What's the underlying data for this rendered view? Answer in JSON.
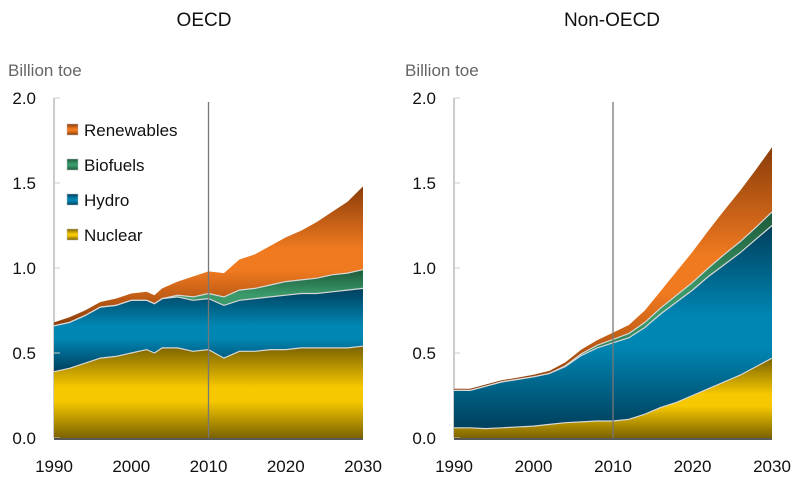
{
  "chart_data": [
    {
      "type": "area",
      "stacked": true,
      "title": "OECD",
      "ylabel": "Billion toe",
      "xlabel": "",
      "xlim": [
        1990,
        2030
      ],
      "ylim": [
        0,
        2.0
      ],
      "xticks": [
        "1990",
        "2000",
        "2010",
        "2020",
        "2030"
      ],
      "yticks": [
        "0.0",
        "0.5",
        "1.0",
        "1.5",
        "2.0"
      ],
      "divider_year": 2010,
      "grid": false,
      "legend": {
        "placement": "top-left",
        "entries": [
          "Renewables",
          "Biofuels",
          "Hydro",
          "Nuclear"
        ]
      },
      "x": [
        1990,
        1992,
        1994,
        1996,
        1998,
        2000,
        2002,
        2003,
        2004,
        2006,
        2008,
        2010,
        2012,
        2014,
        2016,
        2018,
        2020,
        2022,
        2024,
        2026,
        2028,
        2030
      ],
      "series": [
        {
          "name": "Nuclear",
          "values": [
            0.39,
            0.41,
            0.44,
            0.47,
            0.48,
            0.5,
            0.52,
            0.5,
            0.53,
            0.53,
            0.51,
            0.52,
            0.47,
            0.51,
            0.51,
            0.52,
            0.52,
            0.53,
            0.53,
            0.53,
            0.53,
            0.54
          ]
        },
        {
          "name": "Hydro",
          "values": [
            0.27,
            0.27,
            0.28,
            0.3,
            0.3,
            0.31,
            0.29,
            0.29,
            0.29,
            0.3,
            0.3,
            0.3,
            0.31,
            0.3,
            0.31,
            0.31,
            0.32,
            0.32,
            0.32,
            0.33,
            0.34,
            0.34
          ]
        },
        {
          "name": "Biofuels",
          "values": [
            0.0,
            0.0,
            0.0,
            0.0,
            0.0,
            0.0,
            0.0,
            0.0,
            0.0,
            0.01,
            0.02,
            0.03,
            0.05,
            0.06,
            0.06,
            0.07,
            0.08,
            0.08,
            0.09,
            0.1,
            0.1,
            0.11
          ]
        },
        {
          "name": "Renewables",
          "values": [
            0.02,
            0.03,
            0.03,
            0.03,
            0.04,
            0.04,
            0.05,
            0.05,
            0.06,
            0.08,
            0.12,
            0.13,
            0.14,
            0.18,
            0.2,
            0.23,
            0.26,
            0.29,
            0.33,
            0.37,
            0.42,
            0.49
          ]
        }
      ]
    },
    {
      "type": "area",
      "stacked": true,
      "title": "Non-OECD",
      "ylabel": "Billion toe",
      "xlabel": "",
      "xlim": [
        1990,
        2030
      ],
      "ylim": [
        0,
        2.0
      ],
      "xticks": [
        "1990",
        "2000",
        "2010",
        "2020",
        "2030"
      ],
      "yticks": [
        "0.0",
        "0.5",
        "1.0",
        "1.5",
        "2.0"
      ],
      "divider_year": 2010,
      "grid": false,
      "x": [
        1990,
        1992,
        1994,
        1996,
        1998,
        2000,
        2002,
        2004,
        2006,
        2008,
        2010,
        2012,
        2014,
        2016,
        2018,
        2020,
        2022,
        2024,
        2026,
        2028,
        2030
      ],
      "series": [
        {
          "name": "Nuclear",
          "values": [
            0.06,
            0.06,
            0.055,
            0.06,
            0.065,
            0.07,
            0.08,
            0.09,
            0.095,
            0.1,
            0.1,
            0.11,
            0.14,
            0.18,
            0.21,
            0.25,
            0.29,
            0.33,
            0.37,
            0.42,
            0.47
          ]
        },
        {
          "name": "Hydro",
          "values": [
            0.22,
            0.22,
            0.25,
            0.27,
            0.28,
            0.29,
            0.3,
            0.33,
            0.39,
            0.43,
            0.46,
            0.48,
            0.51,
            0.55,
            0.59,
            0.62,
            0.66,
            0.69,
            0.72,
            0.75,
            0.78
          ]
        },
        {
          "name": "Biofuels",
          "values": [
            0.0,
            0.0,
            0.0,
            0.0,
            0.0,
            0.0,
            0.0,
            0.005,
            0.01,
            0.015,
            0.02,
            0.025,
            0.03,
            0.035,
            0.04,
            0.045,
            0.05,
            0.06,
            0.065,
            0.07,
            0.08
          ]
        },
        {
          "name": "Renewables",
          "values": [
            0.01,
            0.01,
            0.01,
            0.01,
            0.01,
            0.012,
            0.015,
            0.02,
            0.025,
            0.03,
            0.04,
            0.05,
            0.07,
            0.1,
            0.14,
            0.18,
            0.22,
            0.26,
            0.3,
            0.34,
            0.38
          ]
        }
      ]
    }
  ],
  "colors": {
    "Nuclear": {
      "light": "#f6c800",
      "dark": "#7a6200"
    },
    "Hydro": {
      "light": "#0086b3",
      "dark": "#003f5c"
    },
    "Biofuels": {
      "light": "#3a9a6a",
      "dark": "#1d5a3a"
    },
    "Renewables": {
      "light": "#f07a20",
      "dark": "#8a3c0a"
    }
  }
}
